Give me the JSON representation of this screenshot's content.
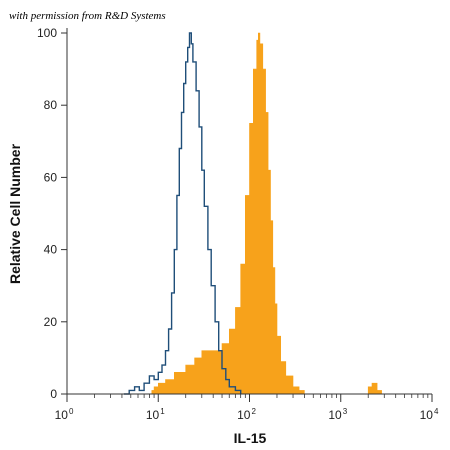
{
  "credit": "with permission from R&D Systems",
  "chart_data": {
    "type": "area",
    "xlabel": "IL-15",
    "ylabel": "Relative Cell Number",
    "x_scale": "log",
    "xlim": [
      1,
      10000
    ],
    "ylim": [
      0,
      100
    ],
    "x_ticks": [
      {
        "value": 1,
        "base": "10",
        "exp": "0"
      },
      {
        "value": 10,
        "base": "10",
        "exp": "1"
      },
      {
        "value": 100,
        "base": "10",
        "exp": "2"
      },
      {
        "value": 1000,
        "base": "10",
        "exp": "3"
      },
      {
        "value": 10000,
        "base": "10",
        "exp": "4"
      }
    ],
    "y_ticks": [
      0,
      20,
      40,
      60,
      80,
      100
    ],
    "grid": false,
    "series": [
      {
        "style": "outline",
        "color": "#1f4e79",
        "points": [
          [
            4.2,
            0
          ],
          [
            4.8,
            1
          ],
          [
            5.5,
            2
          ],
          [
            6.2,
            1
          ],
          [
            7,
            3
          ],
          [
            8,
            5
          ],
          [
            9,
            4
          ],
          [
            10,
            6
          ],
          [
            11,
            8
          ],
          [
            12,
            12
          ],
          [
            13,
            18
          ],
          [
            14,
            28
          ],
          [
            15,
            40
          ],
          [
            16,
            55
          ],
          [
            17,
            68
          ],
          [
            18,
            78
          ],
          [
            19,
            86
          ],
          [
            20,
            92
          ],
          [
            21,
            96
          ],
          [
            22,
            100
          ],
          [
            23,
            97
          ],
          [
            24,
            92
          ],
          [
            26,
            84
          ],
          [
            28,
            74
          ],
          [
            30,
            62
          ],
          [
            32,
            52
          ],
          [
            35,
            40
          ],
          [
            38,
            30
          ],
          [
            42,
            20
          ],
          [
            46,
            12
          ],
          [
            50,
            7
          ],
          [
            55,
            4
          ],
          [
            60,
            2
          ],
          [
            70,
            1
          ],
          [
            80,
            0
          ]
        ]
      },
      {
        "style": "filled",
        "color": "#f7a21b",
        "points": [
          [
            7.5,
            0
          ],
          [
            8.5,
            1
          ],
          [
            9,
            2
          ],
          [
            10,
            3
          ],
          [
            12,
            4
          ],
          [
            15,
            6
          ],
          [
            20,
            8
          ],
          [
            25,
            10
          ],
          [
            30,
            12
          ],
          [
            40,
            12
          ],
          [
            50,
            14
          ],
          [
            60,
            18
          ],
          [
            70,
            24
          ],
          [
            80,
            36
          ],
          [
            90,
            55
          ],
          [
            100,
            75
          ],
          [
            110,
            90
          ],
          [
            120,
            98
          ],
          [
            125,
            100
          ],
          [
            130,
            97
          ],
          [
            140,
            90
          ],
          [
            150,
            78
          ],
          [
            160,
            62
          ],
          [
            170,
            48
          ],
          [
            180,
            35
          ],
          [
            190,
            25
          ],
          [
            200,
            16
          ],
          [
            220,
            9
          ],
          [
            250,
            5
          ],
          [
            300,
            2
          ],
          [
            350,
            1
          ],
          [
            400,
            0
          ],
          [
            1900,
            0
          ],
          [
            2000,
            2
          ],
          [
            2200,
            3
          ],
          [
            2500,
            1
          ],
          [
            2800,
            0
          ]
        ]
      }
    ]
  }
}
